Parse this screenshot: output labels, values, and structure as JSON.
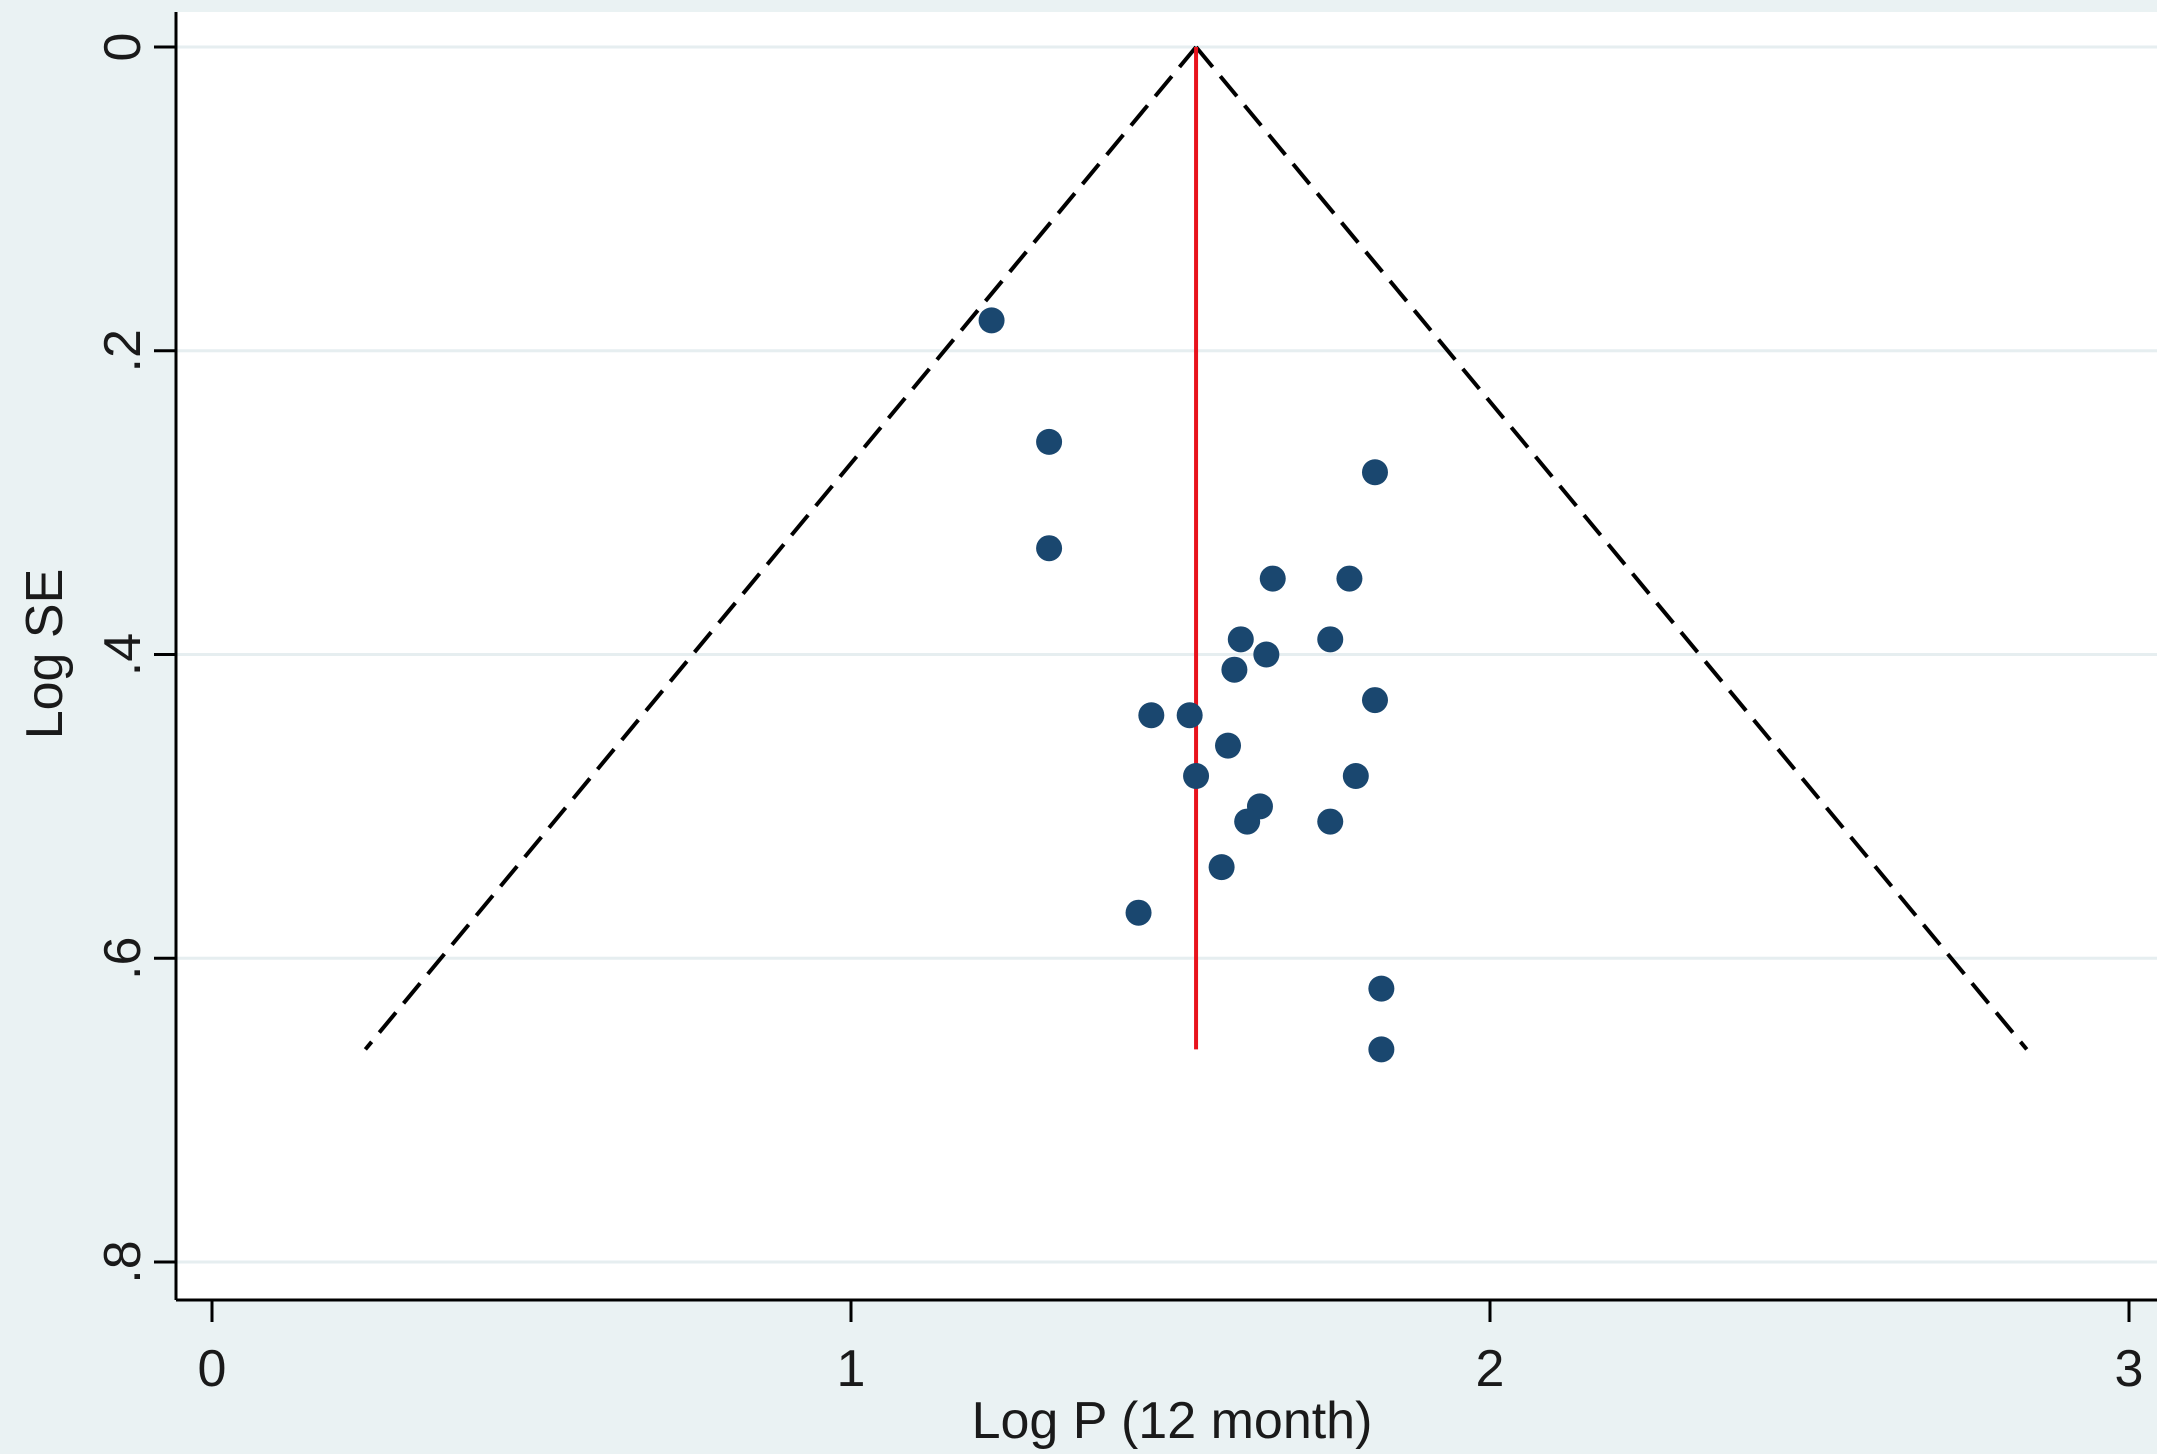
{
  "chart_data": {
    "type": "scatter",
    "title": "",
    "xlabel": "Log P (12 month)",
    "ylabel": "Log SE",
    "xlim": [
      -0.05,
      3.05
    ],
    "ylim": [
      0,
      0.82
    ],
    "y_reversed": true,
    "xticks": [
      0,
      1,
      2,
      3
    ],
    "xtick_labels": [
      "0",
      "1",
      "2",
      "3"
    ],
    "yticks": [
      0,
      0.2,
      0.4,
      0.6,
      0.8
    ],
    "ytick_labels": [
      "0",
      ".2",
      ".4",
      ".6",
      ".8"
    ],
    "grid": true,
    "background_color": "#EAF2F3",
    "plot_background_color": "#FFFFFF",
    "series": [
      {
        "type": "scatter",
        "color": "#1A476F",
        "points": [
          {
            "x": 1.22,
            "y": 0.18
          },
          {
            "x": 1.31,
            "y": 0.26
          },
          {
            "x": 1.31,
            "y": 0.33
          },
          {
            "x": 1.82,
            "y": 0.28
          },
          {
            "x": 1.66,
            "y": 0.35
          },
          {
            "x": 1.78,
            "y": 0.35
          },
          {
            "x": 1.61,
            "y": 0.39
          },
          {
            "x": 1.75,
            "y": 0.39
          },
          {
            "x": 1.65,
            "y": 0.4
          },
          {
            "x": 1.6,
            "y": 0.41
          },
          {
            "x": 1.82,
            "y": 0.43
          },
          {
            "x": 1.47,
            "y": 0.44
          },
          {
            "x": 1.53,
            "y": 0.44
          },
          {
            "x": 1.59,
            "y": 0.46
          },
          {
            "x": 1.54,
            "y": 0.48
          },
          {
            "x": 1.79,
            "y": 0.48
          },
          {
            "x": 1.64,
            "y": 0.5
          },
          {
            "x": 1.62,
            "y": 0.51
          },
          {
            "x": 1.75,
            "y": 0.51
          },
          {
            "x": 1.58,
            "y": 0.54
          },
          {
            "x": 1.45,
            "y": 0.57
          },
          {
            "x": 1.83,
            "y": 0.62
          },
          {
            "x": 1.83,
            "y": 0.66
          }
        ]
      }
    ],
    "pooled_line": {
      "x": 1.54,
      "y_from": 0,
      "y_to": 0.66,
      "color": "#E8121C"
    },
    "funnel_lines": {
      "apex": {
        "x": 1.54,
        "y": 0
      },
      "left_end": {
        "x": 0.24,
        "y": 0.66
      },
      "right_end": {
        "x": 2.84,
        "y": 0.66
      },
      "color": "#000000",
      "style": "dashed"
    }
  }
}
